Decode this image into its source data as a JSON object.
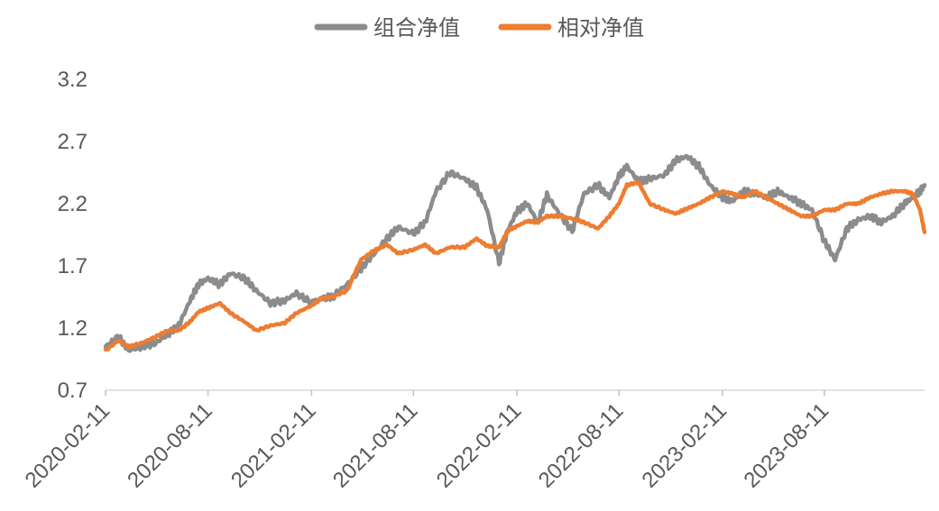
{
  "chart_data": {
    "type": "line",
    "title": "",
    "xlabel": "",
    "ylabel": "",
    "x_tick_labels": [
      "2020-02-11",
      "2020-08-11",
      "2021-02-11",
      "2021-08-11",
      "2022-02-11",
      "2022-08-11",
      "2023-02-11",
      "2023-08-11"
    ],
    "y_tick_labels": [
      "0.7",
      "1.2",
      "1.7",
      "2.2",
      "2.7",
      "3.2"
    ],
    "y_ticks": [
      0.7,
      1.2,
      1.7,
      2.2,
      2.7,
      3.2
    ],
    "ylim": [
      0.7,
      3.2
    ],
    "xlim": [
      "2020-02-11",
      "2024-02-05"
    ],
    "grid": false,
    "legend_position": "top-center",
    "series": [
      {
        "name": "组合净值",
        "color": "#8c8c8c",
        "x": [
          "2020-02-11",
          "2020-03-05",
          "2020-03-23",
          "2020-04-15",
          "2020-05-10",
          "2020-06-01",
          "2020-06-20",
          "2020-07-10",
          "2020-07-25",
          "2020-08-11",
          "2020-09-01",
          "2020-09-20",
          "2020-10-15",
          "2020-11-05",
          "2020-11-30",
          "2020-12-25",
          "2021-01-15",
          "2021-02-11",
          "2021-03-01",
          "2021-03-20",
          "2021-04-15",
          "2021-05-10",
          "2021-06-01",
          "2021-06-25",
          "2021-07-15",
          "2021-08-11",
          "2021-09-01",
          "2021-09-20",
          "2021-10-15",
          "2021-11-10",
          "2021-12-01",
          "2021-12-20",
          "2022-01-10",
          "2022-01-25",
          "2022-02-11",
          "2022-03-01",
          "2022-03-20",
          "2022-04-05",
          "2022-04-27",
          "2022-05-20",
          "2022-06-10",
          "2022-07-05",
          "2022-07-25",
          "2022-08-11",
          "2022-08-25",
          "2022-09-15",
          "2022-10-05",
          "2022-10-31",
          "2022-11-20",
          "2022-12-10",
          "2022-12-31",
          "2023-01-20",
          "2023-02-11",
          "2023-03-01",
          "2023-03-20",
          "2023-04-10",
          "2023-04-30",
          "2023-05-20",
          "2023-06-10",
          "2023-07-01",
          "2023-07-20",
          "2023-08-11",
          "2023-08-30",
          "2023-09-20",
          "2023-10-10",
          "2023-10-31",
          "2023-11-20",
          "2023-12-10",
          "2023-12-31",
          "2024-01-15",
          "2024-01-28",
          "2024-02-05"
        ],
        "values": [
          1.05,
          1.13,
          1.02,
          1.05,
          1.08,
          1.15,
          1.22,
          1.42,
          1.55,
          1.6,
          1.55,
          1.64,
          1.6,
          1.5,
          1.4,
          1.42,
          1.48,
          1.4,
          1.44,
          1.45,
          1.55,
          1.68,
          1.79,
          1.92,
          2.01,
          1.96,
          2.05,
          2.3,
          2.45,
          2.4,
          2.33,
          2.15,
          1.72,
          1.98,
          2.14,
          2.2,
          2.05,
          2.27,
          2.12,
          1.98,
          2.28,
          2.35,
          2.25,
          2.42,
          2.5,
          2.38,
          2.4,
          2.43,
          2.55,
          2.58,
          2.5,
          2.35,
          2.25,
          2.22,
          2.3,
          2.28,
          2.25,
          2.3,
          2.25,
          2.2,
          2.15,
          1.9,
          1.75,
          2.0,
          2.07,
          2.1,
          2.05,
          2.1,
          2.2,
          2.25,
          2.3,
          2.35
        ]
      },
      {
        "name": "相对净值",
        "color": "#ed7d31",
        "x": [
          "2020-02-11",
          "2020-03-05",
          "2020-03-23",
          "2020-04-15",
          "2020-05-10",
          "2020-06-01",
          "2020-06-20",
          "2020-07-10",
          "2020-07-25",
          "2020-08-11",
          "2020-09-01",
          "2020-09-20",
          "2020-10-15",
          "2020-11-05",
          "2020-11-30",
          "2020-12-25",
          "2021-01-15",
          "2021-02-11",
          "2021-03-01",
          "2021-03-20",
          "2021-04-15",
          "2021-05-10",
          "2021-06-01",
          "2021-06-25",
          "2021-07-15",
          "2021-08-11",
          "2021-09-01",
          "2021-09-20",
          "2021-10-15",
          "2021-11-10",
          "2021-12-01",
          "2021-12-20",
          "2022-01-10",
          "2022-01-25",
          "2022-02-11",
          "2022-03-01",
          "2022-03-20",
          "2022-04-05",
          "2022-04-27",
          "2022-05-20",
          "2022-06-10",
          "2022-07-05",
          "2022-07-25",
          "2022-08-11",
          "2022-08-25",
          "2022-09-15",
          "2022-10-05",
          "2022-10-31",
          "2022-11-20",
          "2022-12-10",
          "2022-12-31",
          "2023-01-20",
          "2023-02-11",
          "2023-03-01",
          "2023-03-20",
          "2023-04-10",
          "2023-04-30",
          "2023-05-20",
          "2023-06-10",
          "2023-07-01",
          "2023-07-20",
          "2023-08-11",
          "2023-08-30",
          "2023-09-20",
          "2023-10-10",
          "2023-10-31",
          "2023-11-20",
          "2023-12-10",
          "2023-12-31",
          "2024-01-15",
          "2024-01-28",
          "2024-02-05"
        ],
        "values": [
          1.02,
          1.1,
          1.05,
          1.08,
          1.13,
          1.18,
          1.18,
          1.25,
          1.33,
          1.36,
          1.4,
          1.32,
          1.25,
          1.18,
          1.22,
          1.24,
          1.32,
          1.38,
          1.44,
          1.45,
          1.5,
          1.75,
          1.82,
          1.87,
          1.8,
          1.83,
          1.87,
          1.8,
          1.85,
          1.85,
          1.92,
          1.86,
          1.85,
          1.98,
          2.02,
          2.06,
          2.05,
          2.1,
          2.1,
          2.08,
          2.05,
          2.0,
          2.1,
          2.2,
          2.35,
          2.37,
          2.2,
          2.15,
          2.12,
          2.16,
          2.2,
          2.25,
          2.3,
          2.28,
          2.25,
          2.3,
          2.25,
          2.2,
          2.15,
          2.1,
          2.1,
          2.15,
          2.15,
          2.2,
          2.2,
          2.25,
          2.28,
          2.3,
          2.3,
          2.28,
          2.15,
          1.97
        ]
      }
    ]
  }
}
